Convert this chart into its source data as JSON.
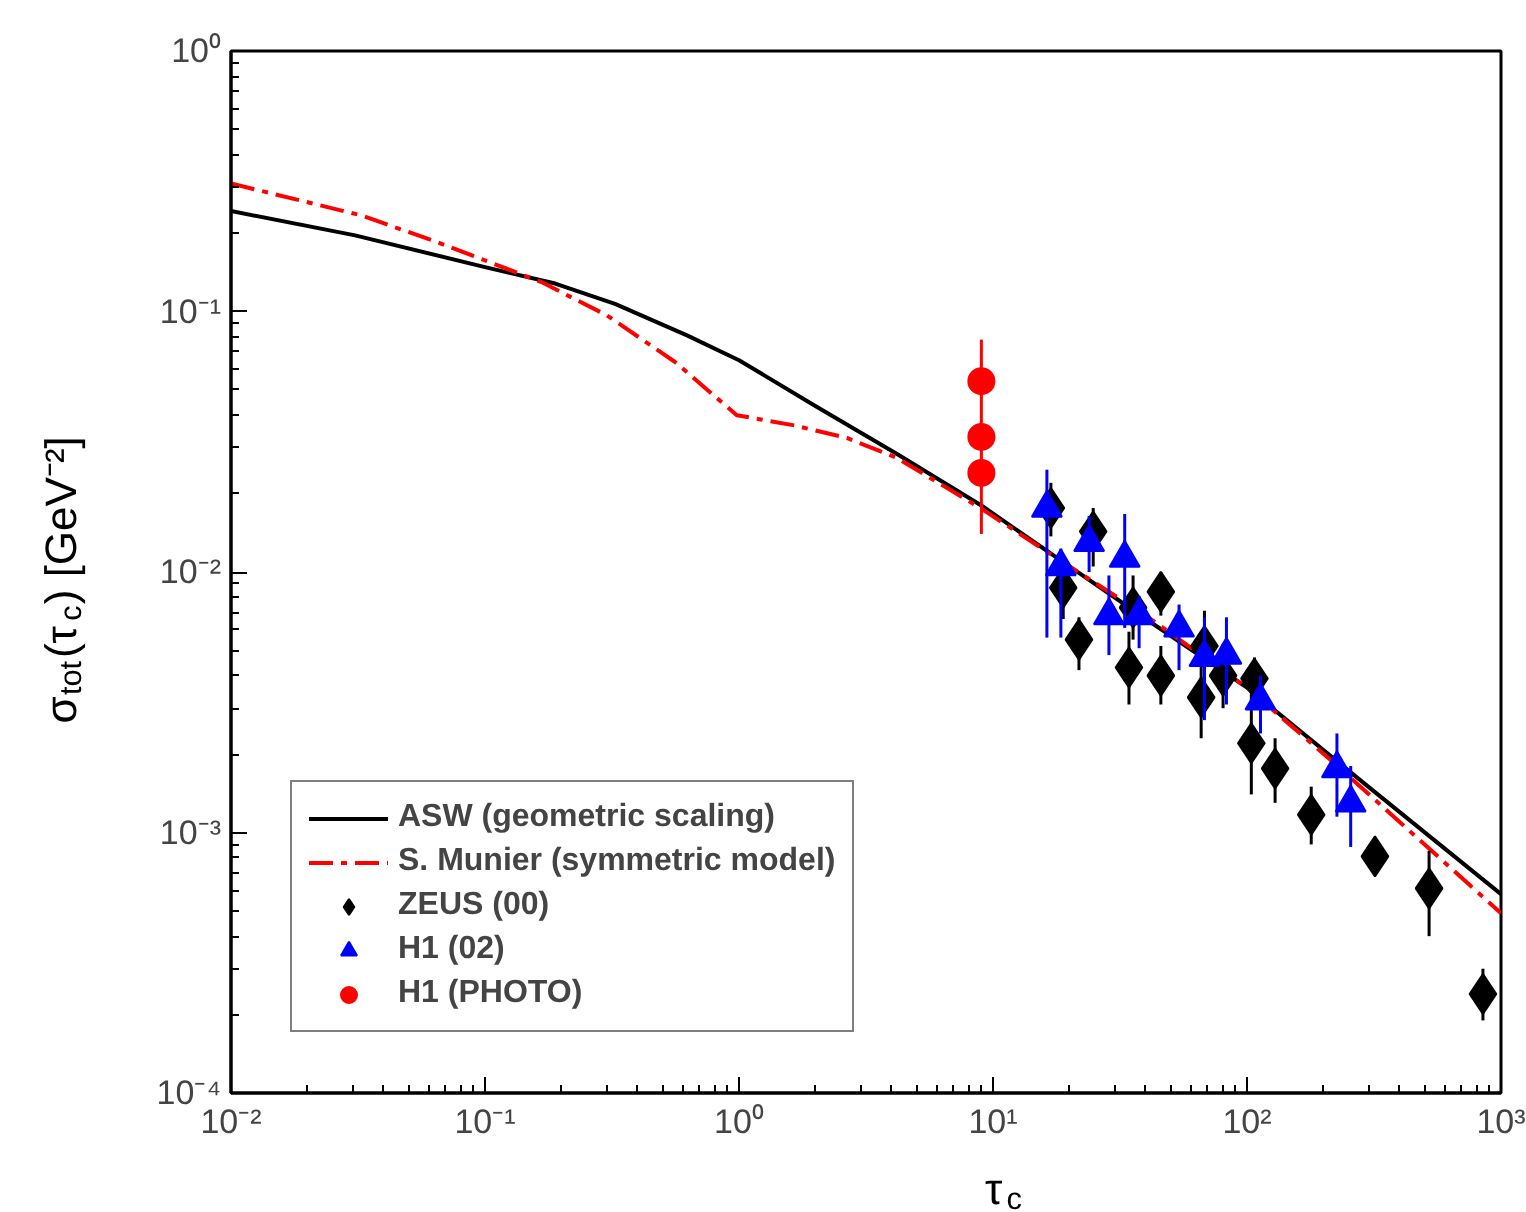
{
  "chart_data": {
    "type": "scatter",
    "xlabel": "τ$_{c}$",
    "ylabel": "σ$_{tot}$(τ$_{c}$) [GeV⁻²]",
    "log": "xy",
    "xlim": [
      0.01,
      1000
    ],
    "ylim": [
      0.0001,
      1
    ],
    "xticks": [
      {
        "value": 0.01,
        "label": "10⁻²"
      },
      {
        "value": 0.1,
        "label": "10⁻¹"
      },
      {
        "value": 1,
        "label": "10⁰"
      },
      {
        "value": 10,
        "label": "10¹"
      },
      {
        "value": 100,
        "label": "10²"
      },
      {
        "value": 1000,
        "label": "10³"
      }
    ],
    "yticks": [
      {
        "value": 0.0001,
        "label": "10⁻⁴"
      },
      {
        "value": 0.001,
        "label": "10⁻³"
      },
      {
        "value": 0.01,
        "label": "10⁻²"
      },
      {
        "value": 0.1,
        "label": "10⁻¹"
      },
      {
        "value": 1,
        "label": "10⁰"
      }
    ],
    "grid": false,
    "legend": "bottom left",
    "series": [
      {
        "name": "ASW (geometric scaling)",
        "type": "line",
        "line_style": "solid",
        "marker": "none",
        "color": "#000000",
        "x": [
          0.01,
          0.0308,
          0.1,
          0.189,
          0.325,
          0.624,
          1,
          1.99,
          4.19,
          9,
          20,
          40,
          100,
          300,
          1000
        ],
        "values": [
          0.243,
          0.196,
          0.148,
          0.128,
          0.107,
          0.081,
          0.065,
          0.0435,
          0.0284,
          0.018,
          0.0105,
          0.0066,
          0.0036,
          0.0015,
          0.00058
        ]
      },
      {
        "name": "S. Munier (symmetric model)",
        "type": "line",
        "line_style": "dashdot",
        "marker": "none",
        "color": "#ff0000",
        "x": [
          0.01,
          0.0325,
          0.0635,
          0.166,
          0.302,
          0.56,
          0.98,
          1.66,
          2.66,
          4.19,
          9,
          20,
          40,
          100,
          220,
          1000
        ],
        "values": [
          0.31,
          0.234,
          0.186,
          0.13,
          0.0966,
          0.064,
          0.04,
          0.0365,
          0.0327,
          0.0274,
          0.0175,
          0.0105,
          0.0068,
          0.0036,
          0.00185,
          0.00049
        ]
      },
      {
        "name": "ZEUS (00)",
        "marker": "diamond",
        "color": "#000000",
        "x": [
          16.9,
          24.8,
          18.9,
          21.8,
          35.6,
          45.8,
          34.3,
          45.8,
          68,
          80.5,
          66,
          107,
          104,
          129,
          179,
          319,
          521,
          849
        ],
        "values": [
          0.0176,
          0.0143,
          0.0087,
          0.0055,
          0.0073,
          0.0084,
          0.0043,
          0.004,
          0.0052,
          0.004,
          0.0033,
          0.0039,
          0.0022,
          0.00176,
          0.00117,
          0.00081,
          0.00061,
          0.00024
        ],
        "errors": [
          [
            0.0137,
            0.022
          ],
          [
            0.0105,
            0.0176
          ],
          [
            0.0066,
            0.0115
          ],
          [
            0.0042,
            0.0067
          ],
          [
            0.0055,
            0.0097
          ],
          [
            0.0068,
            0.01
          ],
          [
            0.0031,
            0.0059
          ],
          [
            0.0031,
            0.0052
          ],
          [
            0.0038,
            0.0071
          ],
          [
            0.003,
            0.0053
          ],
          [
            0.0023,
            0.0045
          ],
          [
            0.0032,
            0.0047
          ],
          [
            0.0014,
            0.0034
          ],
          [
            0.0013,
            0.0023
          ],
          [
            0.0009,
            0.0015
          ],
          [
            0.0007,
            0.00095
          ],
          [
            0.0004,
            0.00085
          ],
          [
            0.00019,
            0.0003
          ]
        ]
      },
      {
        "name": "H1 (02)",
        "marker": "triangle",
        "color": "#0000ff",
        "x": [
          16.3,
          18.5,
          23.9,
          33,
          28.6,
          37.6,
          54,
          68,
          83,
          113,
          226,
          256
        ],
        "values": [
          0.0176,
          0.0105,
          0.013,
          0.0113,
          0.0068,
          0.0068,
          0.0061,
          0.0047,
          0.0048,
          0.0032,
          0.00176,
          0.0013
        ],
        "errors": [
          [
            0.0056,
            0.0247
          ],
          [
            0.0056,
            0.0123
          ],
          [
            0.01,
            0.0164
          ],
          [
            0.0061,
            0.0167
          ],
          [
            0.0048,
            0.0097
          ],
          [
            0.0051,
            0.0081
          ],
          [
            0.0042,
            0.0075
          ],
          [
            0.0027,
            0.0067
          ],
          [
            0.0031,
            0.0067
          ],
          [
            0.0024,
            0.004
          ],
          [
            0.00115,
            0.0024
          ],
          [
            0.00088,
            0.0018
          ]
        ]
      },
      {
        "name": "H1 (PHOTO)",
        "marker": "circle",
        "color": "#ff0000",
        "x": [
          9,
          9,
          9
        ],
        "values": [
          0.054,
          0.033,
          0.024
        ],
        "errors": [
          [
            0.014,
            0.078
          ],
          null,
          null
        ]
      }
    ]
  }
}
